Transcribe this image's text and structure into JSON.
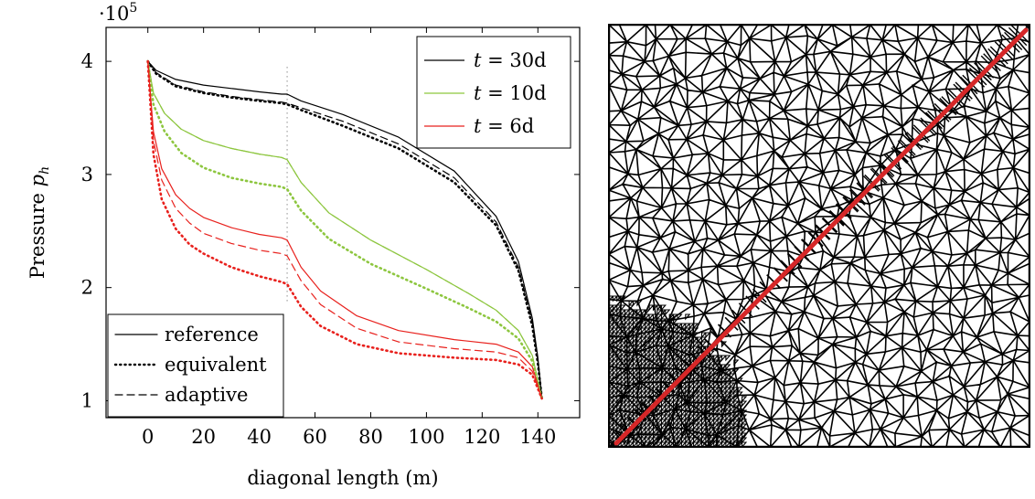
{
  "chart_data": [
    {
      "type": "line",
      "title": "",
      "xlabel": "diagonal length (m)",
      "ylabel_main": "Pressure ",
      "ylabel_sub": "h",
      "ylabel_var": "p",
      "y_multiplier_base": "·10",
      "y_multiplier_exp": "5",
      "xlim": [
        -15,
        155
      ],
      "ylim": [
        0.85,
        4.3
      ],
      "x_ticks": [
        0,
        20,
        40,
        60,
        80,
        100,
        120,
        140
      ],
      "x_tick_labels": [
        "0",
        "20",
        "40",
        "60",
        "80",
        "100",
        "120",
        "140"
      ],
      "y_ticks": [
        1,
        2,
        3,
        4
      ],
      "y_tick_labels": [
        "1",
        "2",
        "3",
        "4"
      ],
      "fracture_position_x": 50,
      "time_legend": {
        "placement": "top-right",
        "entries": [
          {
            "var": "t",
            "eq": " = 30d",
            "color": "#000000"
          },
          {
            "var": "t",
            "eq": " = 10d",
            "color": "#8dc63f"
          },
          {
            "var": "t",
            "eq": " =  6d",
            "color": "#e8211d"
          }
        ]
      },
      "style_legend": {
        "placement": "bottom-left",
        "entries": [
          {
            "label": "reference",
            "dash": "solid"
          },
          {
            "label": "equivalent",
            "dash": "dotted"
          },
          {
            "label": "adaptive",
            "dash": "dashed"
          }
        ]
      },
      "series": [
        {
          "time": "30d",
          "method": "reference",
          "color": "#000000",
          "x": [
            0,
            3,
            10,
            20,
            30,
            40,
            48,
            50,
            55,
            70,
            90,
            110,
            125,
            133,
            138,
            140,
            141.4
          ],
          "y": [
            4.0,
            3.92,
            3.84,
            3.79,
            3.76,
            3.73,
            3.71,
            3.71,
            3.65,
            3.53,
            3.33,
            3.03,
            2.63,
            2.23,
            1.73,
            1.38,
            1.02
          ]
        },
        {
          "time": "30d",
          "method": "equivalent",
          "color": "#000000",
          "x": [
            0,
            3,
            10,
            20,
            30,
            40,
            48,
            50,
            55,
            70,
            90,
            110,
            125,
            133,
            138,
            140,
            141.4
          ],
          "y": [
            4.0,
            3.89,
            3.78,
            3.72,
            3.68,
            3.65,
            3.63,
            3.62,
            3.57,
            3.43,
            3.23,
            2.93,
            2.55,
            2.15,
            1.66,
            1.33,
            1.02
          ]
        },
        {
          "time": "30d",
          "method": "adaptive",
          "color": "#000000",
          "x": [
            0,
            3,
            10,
            20,
            30,
            40,
            48,
            50,
            55,
            70,
            90,
            110,
            125,
            133,
            138,
            140,
            141.4
          ],
          "y": [
            4.0,
            3.9,
            3.79,
            3.73,
            3.69,
            3.66,
            3.64,
            3.63,
            3.59,
            3.47,
            3.27,
            2.97,
            2.58,
            2.18,
            1.69,
            1.35,
            1.02
          ]
        },
        {
          "time": "10d",
          "method": "reference",
          "color": "#8dc63f",
          "x": [
            0,
            2,
            6,
            12,
            20,
            30,
            40,
            48,
            50,
            55,
            65,
            80,
            100,
            115,
            125,
            133,
            138,
            141.4
          ],
          "y": [
            4.0,
            3.72,
            3.54,
            3.4,
            3.3,
            3.23,
            3.18,
            3.15,
            3.13,
            2.93,
            2.66,
            2.42,
            2.16,
            1.95,
            1.8,
            1.62,
            1.4,
            1.02
          ]
        },
        {
          "time": "10d",
          "method": "equivalent",
          "color": "#8dc63f",
          "x": [
            0,
            2,
            6,
            12,
            20,
            30,
            40,
            48,
            50,
            55,
            65,
            80,
            100,
            115,
            125,
            133,
            138,
            141.4
          ],
          "y": [
            4.0,
            3.62,
            3.38,
            3.19,
            3.06,
            2.97,
            2.92,
            2.89,
            2.87,
            2.68,
            2.43,
            2.21,
            1.99,
            1.82,
            1.7,
            1.55,
            1.35,
            1.02
          ]
        },
        {
          "time": "10d",
          "method": "adaptive",
          "color": "#8dc63f",
          "x": [
            0,
            2,
            6,
            12,
            20,
            30,
            40,
            48,
            50,
            55,
            65,
            80,
            100,
            115,
            125,
            133,
            138,
            141.4
          ],
          "y": [
            4.0,
            3.72,
            3.54,
            3.4,
            3.3,
            3.23,
            3.18,
            3.15,
            3.13,
            2.93,
            2.66,
            2.42,
            2.16,
            1.95,
            1.8,
            1.62,
            1.4,
            1.02
          ]
        },
        {
          "time": "6d",
          "method": "reference",
          "color": "#e8211d",
          "x": [
            0,
            2,
            5,
            10,
            15,
            20,
            30,
            40,
            48,
            50,
            55,
            62,
            75,
            90,
            110,
            125,
            133,
            138,
            141.4
          ],
          "y": [
            4.0,
            3.38,
            3.05,
            2.82,
            2.7,
            2.62,
            2.53,
            2.47,
            2.44,
            2.42,
            2.18,
            1.97,
            1.75,
            1.62,
            1.54,
            1.5,
            1.43,
            1.3,
            1.02
          ]
        },
        {
          "time": "6d",
          "method": "equivalent",
          "color": "#e8211d",
          "x": [
            0,
            2,
            5,
            10,
            15,
            20,
            30,
            40,
            48,
            50,
            55,
            62,
            75,
            90,
            110,
            125,
            133,
            138,
            141.4
          ],
          "y": [
            4.0,
            3.18,
            2.78,
            2.52,
            2.38,
            2.3,
            2.18,
            2.1,
            2.05,
            2.03,
            1.83,
            1.66,
            1.5,
            1.42,
            1.38,
            1.36,
            1.32,
            1.23,
            1.02
          ]
        },
        {
          "time": "6d",
          "method": "adaptive",
          "color": "#e8211d",
          "x": [
            0,
            2,
            5,
            10,
            15,
            20,
            30,
            40,
            48,
            50,
            55,
            62,
            75,
            90,
            110,
            125,
            133,
            138,
            141.4
          ],
          "y": [
            4.0,
            3.3,
            2.95,
            2.7,
            2.57,
            2.48,
            2.39,
            2.33,
            2.3,
            2.28,
            2.06,
            1.85,
            1.64,
            1.52,
            1.46,
            1.43,
            1.38,
            1.26,
            1.02
          ]
        }
      ]
    }
  ],
  "mesh": {
    "mesh_color": "#000000",
    "fracture_color": "#d62728",
    "background_color": "#ffffff"
  }
}
